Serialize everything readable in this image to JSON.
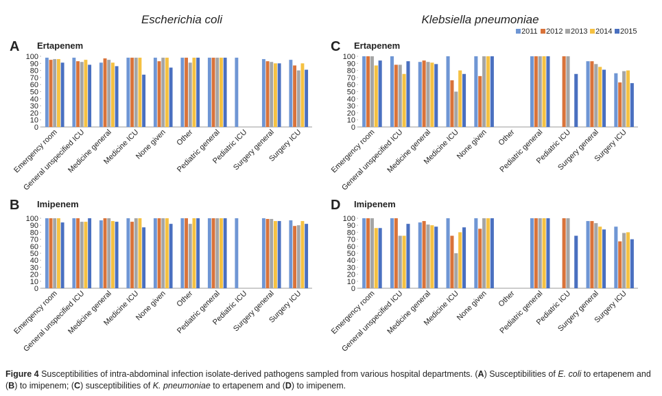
{
  "column_titles": [
    "Escherichia coli",
    "Klebsiella pneumoniae"
  ],
  "caption": [
    "Figure 4",
    " Susceptibilities of intra-abdominal infection isolate-derived pathogens sampled from various hospital departments. (",
    "A",
    ") Susceptibilities of ",
    "E. coli",
    " to ertapenem and (",
    "B",
    ") to imipenem; (",
    "C",
    ") susceptibilities of ",
    "K. pneumoniae",
    " to ertapenem and (",
    "D",
    ") to imipenem."
  ],
  "chart_data": [
    {
      "type": "bar",
      "panel": "A",
      "title": "Ertapenem",
      "categories": [
        "Emergency room",
        "General unspecified ICU",
        "Medicine general",
        "Medicine ICU",
        "None given",
        "Other",
        "Pediatric general",
        "Pediatric ICU",
        "Surgery general",
        "Surgery ICU"
      ],
      "series": [
        {
          "name": "2011",
          "color": "#6f96d4",
          "values": [
            98,
            98,
            91,
            98,
            98,
            98,
            98,
            98,
            96,
            95
          ]
        },
        {
          "name": "2012",
          "color": "#d9733a",
          "values": [
            95,
            93,
            97,
            98,
            93,
            98,
            98,
            null,
            93,
            87
          ]
        },
        {
          "name": "2013",
          "color": "#a5a5a5",
          "values": [
            96,
            92,
            95,
            98,
            98,
            91,
            98,
            null,
            92,
            80
          ]
        },
        {
          "name": "2014",
          "color": "#f5c142",
          "values": [
            96,
            95,
            91,
            98,
            98,
            98,
            98,
            null,
            90,
            90
          ]
        },
        {
          "name": "2015",
          "color": "#4a70c0",
          "values": [
            91,
            88,
            86,
            74,
            84,
            98,
            98,
            null,
            90,
            81
          ]
        }
      ],
      "ylim": [
        0,
        100
      ],
      "yticks": [
        0,
        10,
        20,
        30,
        40,
        50,
        60,
        70,
        80,
        90,
        100
      ]
    },
    {
      "type": "bar",
      "panel": "B",
      "title": "Imipenem",
      "categories": [
        "Emergency room",
        "General unspecified ICU",
        "Medicine general",
        "Medicine ICU",
        "None given",
        "Other",
        "Pediatric general",
        "Pediatric ICU",
        "Surgery general",
        "Surgery ICU"
      ],
      "series": [
        {
          "name": "2011",
          "color": "#6f96d4",
          "values": [
            100,
            100,
            97,
            100,
            100,
            100,
            100,
            100,
            100,
            97
          ]
        },
        {
          "name": "2012",
          "color": "#d9733a",
          "values": [
            100,
            100,
            100,
            95,
            100,
            100,
            100,
            null,
            99,
            89
          ]
        },
        {
          "name": "2013",
          "color": "#a5a5a5",
          "values": [
            100,
            95,
            100,
            100,
            100,
            92,
            100,
            null,
            99,
            90
          ]
        },
        {
          "name": "2014",
          "color": "#f5c142",
          "values": [
            100,
            95,
            96,
            100,
            100,
            100,
            100,
            null,
            96,
            96
          ]
        },
        {
          "name": "2015",
          "color": "#4a70c0",
          "values": [
            94,
            100,
            95,
            87,
            92,
            100,
            100,
            null,
            96,
            92
          ]
        }
      ],
      "ylim": [
        0,
        100
      ],
      "yticks": [
        0,
        10,
        20,
        30,
        40,
        50,
        60,
        70,
        80,
        90,
        100
      ]
    },
    {
      "type": "bar",
      "panel": "C",
      "title": "Ertapenem",
      "legend": "top-right",
      "categories": [
        "Emergency room",
        "General unspecified ICU",
        "Medicine general",
        "Medicine ICU",
        "None given",
        "Other",
        "Pediatric general",
        "Pediatric ICU",
        "Surgery general",
        "Surgery ICU"
      ],
      "series": [
        {
          "name": "2011",
          "color": "#6f96d4",
          "values": [
            100,
            100,
            92,
            100,
            100,
            null,
            100,
            null,
            93,
            76
          ]
        },
        {
          "name": "2012",
          "color": "#d9733a",
          "values": [
            100,
            88,
            94,
            66,
            72,
            null,
            100,
            100,
            93,
            63
          ]
        },
        {
          "name": "2013",
          "color": "#a5a5a5",
          "values": [
            100,
            88,
            92,
            50,
            100,
            null,
            100,
            100,
            89,
            79
          ]
        },
        {
          "name": "2014",
          "color": "#f5c142",
          "values": [
            87,
            75,
            91,
            80,
            100,
            null,
            100,
            null,
            85,
            80
          ]
        },
        {
          "name": "2015",
          "color": "#4a70c0",
          "values": [
            94,
            93,
            89,
            75,
            100,
            null,
            100,
            75,
            81,
            62
          ]
        }
      ],
      "ylim": [
        0,
        100
      ],
      "yticks": [
        0,
        10,
        20,
        30,
        40,
        50,
        60,
        70,
        80,
        90,
        100
      ]
    },
    {
      "type": "bar",
      "panel": "D",
      "title": "Imipenem",
      "categories": [
        "Emergency room",
        "General unspecified ICU",
        "Medicine general",
        "Medicine ICU",
        "None given",
        "Other",
        "Pediatric general",
        "Pediatric ICU",
        "Surgery general",
        "Surgery ICU"
      ],
      "series": [
        {
          "name": "2011",
          "color": "#6f96d4",
          "values": [
            100,
            100,
            94,
            100,
            100,
            null,
            100,
            null,
            96,
            88
          ]
        },
        {
          "name": "2012",
          "color": "#d9733a",
          "values": [
            100,
            100,
            96,
            75,
            85,
            null,
            100,
            100,
            96,
            67
          ]
        },
        {
          "name": "2013",
          "color": "#a5a5a5",
          "values": [
            100,
            75,
            91,
            50,
            100,
            null,
            100,
            100,
            93,
            79
          ]
        },
        {
          "name": "2014",
          "color": "#f5c142",
          "values": [
            86,
            75,
            90,
            80,
            100,
            null,
            100,
            null,
            88,
            80
          ]
        },
        {
          "name": "2015",
          "color": "#4a70c0",
          "values": [
            86,
            92,
            88,
            87,
            100,
            null,
            100,
            75,
            84,
            70
          ]
        }
      ],
      "ylim": [
        0,
        100
      ],
      "yticks": [
        0,
        10,
        20,
        30,
        40,
        50,
        60,
        70,
        80,
        90,
        100
      ]
    }
  ]
}
